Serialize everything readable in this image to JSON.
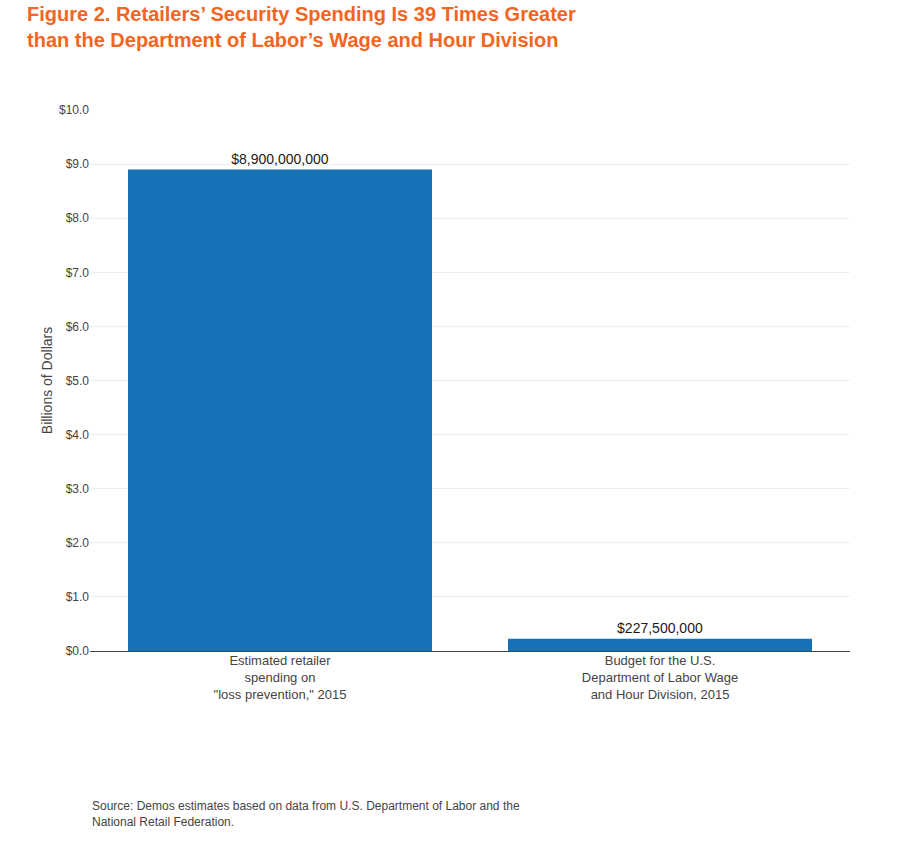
{
  "chart_data": {
    "type": "bar",
    "title": "Figure 2. Retailers’ Security Spending Is 39 Times Greater\nthan the Department of Labor’s Wage and Hour Division",
    "categories": [
      "Estimated retailer\nspending on\n\"loss prevention,\" 2015",
      "Budget for the U.S.\nDepartment of Labor Wage\nand Hour Division, 2015"
    ],
    "values": [
      8.9,
      0.2275
    ],
    "value_labels": [
      "$8,900,000,000",
      "$227,500,000"
    ],
    "data_labels": true,
    "color": "#1572b6",
    "ylabel": "Billions of Dollars",
    "ylim": [
      0,
      10.0
    ],
    "yticks": [
      {
        "value": 0.0,
        "label": "$0.0"
      },
      {
        "value": 1.0,
        "label": "$1.0"
      },
      {
        "value": 2.0,
        "label": "$2.0"
      },
      {
        "value": 3.0,
        "label": "$3.0"
      },
      {
        "value": 4.0,
        "label": "$4.0"
      },
      {
        "value": 5.0,
        "label": "$5.0"
      },
      {
        "value": 6.0,
        "label": "$6.0"
      },
      {
        "value": 7.0,
        "label": "$7.0"
      },
      {
        "value": 8.0,
        "label": "$8.0"
      },
      {
        "value": 9.0,
        "label": "$9.0"
      },
      {
        "value": 10.0,
        "label": "$10.0"
      }
    ],
    "grid": true,
    "annotations": [
      "Source: Demos estimates based on data from U.S. Department of Labor and the\nNational Retail Federation."
    ]
  }
}
